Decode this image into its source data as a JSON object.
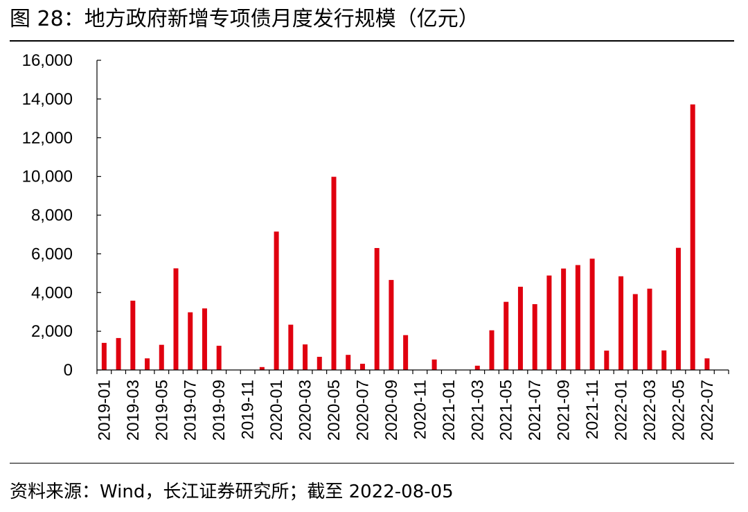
{
  "title": "图 28：地方政府新增专项债月度发行规模（亿元）",
  "source": "资料来源：Wind，长江证券研究所；截至 2022-08-05",
  "colors": {
    "bar": "#e0000f",
    "axis": "#000000"
  },
  "chart_data": {
    "type": "bar",
    "title": "图 28：地方政府新增专项债月度发行规模（亿元）",
    "xlabel": "",
    "ylabel": "",
    "ylim": [
      0,
      16000
    ],
    "yticks": [
      "0",
      "2,000",
      "4,000",
      "6,000",
      "8,000",
      "10,000",
      "12,000",
      "14,000",
      "16,000"
    ],
    "grid": false,
    "legend": "none",
    "categories": [
      "2019-01",
      "2019-02",
      "2019-03",
      "2019-04",
      "2019-05",
      "2019-06",
      "2019-07",
      "2019-08",
      "2019-09",
      "2019-10",
      "2019-11",
      "2019-12",
      "2020-01",
      "2020-02",
      "2020-03",
      "2020-04",
      "2020-05",
      "2020-06",
      "2020-07",
      "2020-08",
      "2020-09",
      "2020-10",
      "2020-11",
      "2020-12",
      "2021-01",
      "2021-02",
      "2021-03",
      "2021-04",
      "2021-05",
      "2021-06",
      "2021-07",
      "2021-08",
      "2021-09",
      "2021-10",
      "2021-11",
      "2021-12",
      "2022-01",
      "2022-02",
      "2022-03",
      "2022-04",
      "2022-05",
      "2022-06",
      "2022-07",
      "2022-08"
    ],
    "tick_labels": [
      "2019-01",
      "2019-03",
      "2019-05",
      "2019-07",
      "2019-09",
      "2019-11",
      "2020-01",
      "2020-03",
      "2020-05",
      "2020-07",
      "2020-09",
      "2020-11",
      "2021-01",
      "2021-03",
      "2021-05",
      "2021-07",
      "2021-09",
      "2021-11",
      "2022-01",
      "2022-03",
      "2022-05",
      "2022-07"
    ],
    "series": [
      {
        "values": [
          1400,
          1650,
          3580,
          600,
          1300,
          5250,
          2980,
          3180,
          1250,
          0,
          0,
          150,
          7150,
          2340,
          1320,
          680,
          9980,
          780,
          320,
          6300,
          4650,
          1800,
          0,
          540,
          0,
          0,
          220,
          2050,
          3520,
          4300,
          3400,
          4880,
          5240,
          5420,
          5750,
          1000,
          4840,
          3920,
          4200,
          1010,
          6310,
          13720,
          600,
          0
        ]
      }
    ]
  }
}
